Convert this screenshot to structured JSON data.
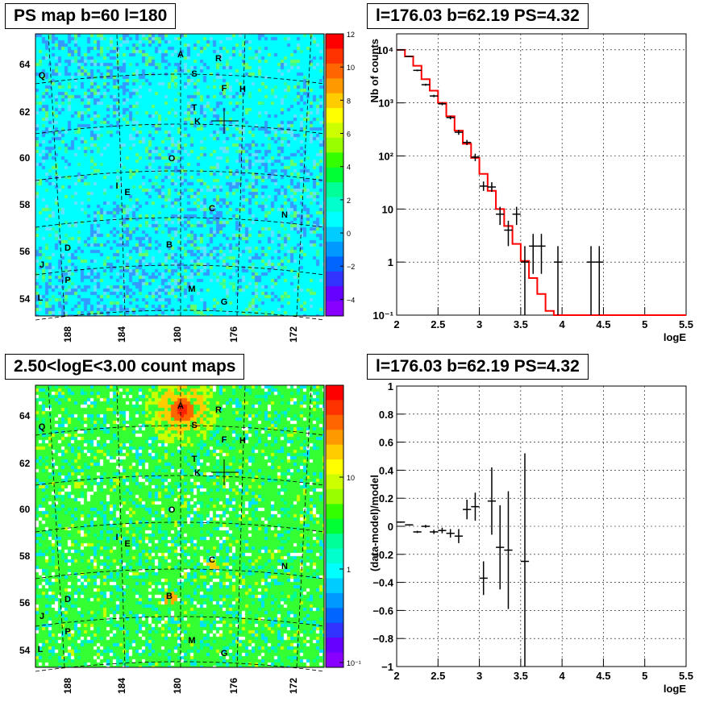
{
  "panels": {
    "tl_title": "PS map b=60 l=180",
    "tr_title": "l=176.03 b=62.19 PS=4.32",
    "bl_title": "2.50<logE<3.00 count maps",
    "br_title": "l=176.03 b=62.19 PS=4.32"
  },
  "colors": {
    "model_line": "#ff0000",
    "data_marker": "#000000"
  },
  "chart_data": [
    {
      "type": "heatmap",
      "id": "ps_map",
      "title": "PS map b=60 l=180",
      "x_ticks": [
        "188",
        "184",
        "180",
        "176",
        "172"
      ],
      "y_ticks": [
        "54",
        "56",
        "58",
        "60",
        "62",
        "64"
      ],
      "colorbar_ticks": [
        "12",
        "10",
        "8",
        "6",
        "4",
        "2",
        "0",
        "−2",
        "−4"
      ],
      "colorbar_range": [
        -5,
        12
      ],
      "sources": [
        "A",
        "R",
        "S",
        "Q",
        "F",
        "H",
        "T",
        "K",
        "O",
        "I",
        "E",
        "C",
        "N",
        "D",
        "B",
        "J",
        "P",
        "M",
        "L",
        "G"
      ],
      "marker": {
        "l": 176.03,
        "b": 62.19
      }
    },
    {
      "type": "line",
      "id": "spectrum",
      "title": "l=176.03 b=62.19 PS=4.32",
      "xlabel": "logE",
      "ylabel": "Nb of counts",
      "xlim": [
        2,
        5.5
      ],
      "ylim": [
        0.1,
        20000
      ],
      "yscale": "log",
      "x_ticks": [
        "2",
        "2.5",
        "3",
        "3.5",
        "4",
        "4.5",
        "5",
        "5.5"
      ],
      "y_ticks": [
        "10⁻¹",
        "1",
        "10",
        "10²",
        "10³",
        "10⁴"
      ],
      "grid": true,
      "model_bins_edges": [
        2.0,
        2.1,
        2.2,
        2.3,
        2.4,
        2.5,
        2.6,
        2.7,
        2.8,
        2.9,
        3.0,
        3.1,
        3.2,
        3.3,
        3.4,
        3.5,
        3.6,
        3.7,
        3.8,
        3.9,
        4.0,
        4.1,
        5.5
      ],
      "model_values": [
        10000,
        7500,
        5000,
        2800,
        1700,
        1000,
        560,
        300,
        170,
        92,
        46,
        22,
        10,
        4.8,
        2.2,
        1.05,
        0.5,
        0.25,
        0.12,
        0.1,
        0.1,
        0.1
      ],
      "data_points": [
        {
          "x": 2.05,
          "y": 10000,
          "lo": 9800,
          "hi": 10200
        },
        {
          "x": 2.15,
          "y": 7500,
          "lo": 7300,
          "hi": 7700
        },
        {
          "x": 2.25,
          "y": 4100,
          "lo": 3950,
          "hi": 4250
        },
        {
          "x": 2.35,
          "y": 2200,
          "lo": 2100,
          "hi": 2300
        },
        {
          "x": 2.45,
          "y": 1350,
          "lo": 1280,
          "hi": 1420
        },
        {
          "x": 2.55,
          "y": 960,
          "lo": 900,
          "hi": 1020
        },
        {
          "x": 2.65,
          "y": 530,
          "lo": 490,
          "hi": 570
        },
        {
          "x": 2.75,
          "y": 280,
          "lo": 250,
          "hi": 310
        },
        {
          "x": 2.85,
          "y": 180,
          "lo": 160,
          "hi": 200
        },
        {
          "x": 2.95,
          "y": 95,
          "lo": 80,
          "hi": 110
        },
        {
          "x": 3.05,
          "y": 27,
          "lo": 22,
          "hi": 33
        },
        {
          "x": 3.15,
          "y": 26,
          "lo": 21,
          "hi": 32
        },
        {
          "x": 3.25,
          "y": 8,
          "lo": 5,
          "hi": 11
        },
        {
          "x": 3.35,
          "y": 4,
          "lo": 2,
          "hi": 6
        },
        {
          "x": 3.45,
          "y": 8,
          "lo": 5,
          "hi": 11
        },
        {
          "x": 3.55,
          "y": 1,
          "lo": 0.1,
          "hi": 2
        },
        {
          "x": 3.65,
          "y": 2,
          "lo": 0.6,
          "hi": 3.4
        },
        {
          "x": 3.75,
          "y": 2,
          "lo": 0.6,
          "hi": 3.4
        },
        {
          "x": 3.95,
          "y": 1,
          "lo": 0.1,
          "hi": 2
        },
        {
          "x": 4.35,
          "y": 1,
          "lo": 0.1,
          "hi": 2
        },
        {
          "x": 4.45,
          "y": 1,
          "lo": 0.1,
          "hi": 2
        }
      ]
    },
    {
      "type": "heatmap",
      "id": "count_map",
      "title": "2.50<logE<3.00 count maps",
      "x_ticks": [
        "188",
        "184",
        "180",
        "176",
        "172"
      ],
      "y_ticks": [
        "54",
        "56",
        "58",
        "60",
        "62",
        "64"
      ],
      "colorbar_ticks": [
        "10",
        "1",
        "10⁻¹"
      ],
      "colorbar_scale": "log",
      "sources": [
        "A",
        "R",
        "S",
        "Q",
        "F",
        "H",
        "T",
        "K",
        "O",
        "I",
        "E",
        "C",
        "N",
        "D",
        "B",
        "J",
        "P",
        "M",
        "L",
        "G"
      ],
      "marker": {
        "l": 176.03,
        "b": 62.19
      }
    },
    {
      "type": "scatter",
      "id": "residuals",
      "title": "l=176.03 b=62.19 PS=4.32",
      "xlabel": "logE",
      "ylabel": "(data-model)/model",
      "xlim": [
        2,
        5.5
      ],
      "ylim": [
        -1,
        1
      ],
      "x_ticks": [
        "2",
        "2.5",
        "3",
        "3.5",
        "4",
        "4.5",
        "5",
        "5.5"
      ],
      "y_ticks": [
        "1",
        "0.8",
        "0.6",
        "0.4",
        "0.2",
        "0",
        "−0.2",
        "−0.4",
        "−0.6",
        "−0.8",
        "−1"
      ],
      "grid": true,
      "points": [
        {
          "x": 2.05,
          "y": 0.03,
          "err": 0.005
        },
        {
          "x": 2.15,
          "y": 0.01,
          "err": 0.005
        },
        {
          "x": 2.25,
          "y": -0.04,
          "err": 0.008
        },
        {
          "x": 2.35,
          "y": 0.0,
          "err": 0.01
        },
        {
          "x": 2.45,
          "y": -0.04,
          "err": 0.015
        },
        {
          "x": 2.55,
          "y": -0.03,
          "err": 0.02
        },
        {
          "x": 2.65,
          "y": -0.05,
          "err": 0.03
        },
        {
          "x": 2.75,
          "y": -0.07,
          "err": 0.05
        },
        {
          "x": 2.85,
          "y": 0.12,
          "err": 0.07
        },
        {
          "x": 2.95,
          "y": 0.14,
          "err": 0.1
        },
        {
          "x": 3.05,
          "y": -0.37,
          "err": 0.12
        },
        {
          "x": 3.15,
          "y": 0.18,
          "err": 0.24
        },
        {
          "x": 3.25,
          "y": -0.15,
          "err": 0.3
        },
        {
          "x": 3.35,
          "y": -0.17,
          "err": 0.42
        },
        {
          "x": 3.55,
          "y": -0.25,
          "err": 0.77
        }
      ]
    }
  ]
}
